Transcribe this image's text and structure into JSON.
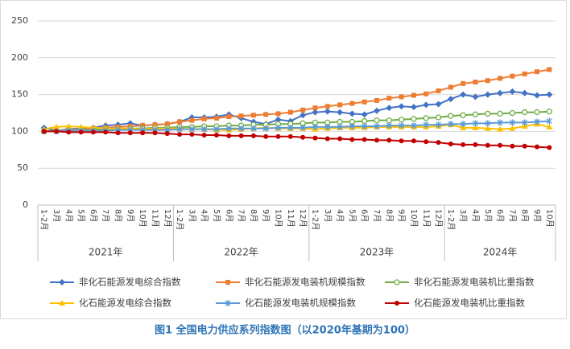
{
  "chart_data": {
    "type": "line",
    "caption": "图1 全国电力供应系列指数图（以2020年基期为100）",
    "categories": [
      "1-2月",
      "3月",
      "4月",
      "5月",
      "6月",
      "7月",
      "8月",
      "9月",
      "10月",
      "11月",
      "12月",
      "1-2月",
      "3月",
      "4月",
      "5月",
      "6月",
      "7月",
      "8月",
      "9月",
      "10月",
      "11月",
      "12月",
      "1-2月",
      "3月",
      "4月",
      "5月",
      "6月",
      "7月",
      "8月",
      "9月",
      "10月",
      "11月",
      "12月",
      "1-2月",
      "3月",
      "4月",
      "5月",
      "6月",
      "7月",
      "8月",
      "9月",
      "10月"
    ],
    "year_labels": [
      "2021年",
      "2022年",
      "2023年",
      "2024年"
    ],
    "ylim": [
      0,
      250
    ],
    "yticks": [
      0,
      50,
      100,
      150,
      200,
      250
    ],
    "grid": true,
    "legend": "bottom",
    "series": [
      {
        "name": "非化石能源发电综合指数",
        "color": "#4472c4",
        "marker": "diamond",
        "values": [
          105,
          101,
          103,
          104,
          105,
          108,
          109,
          111,
          108,
          109,
          110,
          113,
          119,
          119,
          120,
          123,
          118,
          113,
          110,
          116,
          114,
          122,
          126,
          127,
          126,
          124,
          123,
          128,
          132,
          134,
          133,
          136,
          137,
          144,
          150,
          147,
          150,
          152,
          154,
          152,
          149,
          150
        ]
      },
      {
        "name": "非化石能源发电装机规模指数",
        "color": "#ed7d31",
        "marker": "square",
        "values": [
          100,
          101,
          102,
          103,
          104,
          105,
          106,
          107,
          108,
          109,
          110,
          113,
          115,
          117,
          118,
          120,
          121,
          122,
          123,
          124,
          126,
          129,
          132,
          134,
          136,
          138,
          140,
          142,
          145,
          147,
          149,
          151,
          155,
          160,
          165,
          167,
          169,
          172,
          175,
          178,
          181,
          184
        ]
      },
      {
        "name": "非化石能源发电装机比重指数",
        "color": "#70ad47",
        "marker": "circle-open",
        "values": [
          100,
          101,
          101,
          102,
          102,
          103,
          103,
          104,
          104,
          105,
          105,
          106,
          106,
          107,
          107,
          108,
          108,
          109,
          109,
          110,
          110,
          111,
          112,
          112,
          113,
          113,
          114,
          115,
          115,
          116,
          117,
          118,
          119,
          121,
          122,
          123,
          124,
          124,
          125,
          126,
          126,
          127
        ]
      },
      {
        "name": "化石能源发电综合指数",
        "color": "#ffc000",
        "marker": "triangle",
        "values": [
          103,
          106,
          107,
          106,
          105,
          104,
          104,
          104,
          103,
          104,
          104,
          104,
          103,
          103,
          102,
          102,
          103,
          104,
          105,
          104,
          104,
          104,
          103,
          104,
          105,
          105,
          105,
          106,
          106,
          106,
          106,
          106,
          107,
          109,
          105,
          105,
          104,
          103,
          104,
          107,
          110,
          106
        ]
      },
      {
        "name": "化石能源发电装机规模指数",
        "color": "#5b9bd5",
        "marker": "star",
        "values": [
          100,
          100,
          101,
          101,
          101,
          101,
          102,
          102,
          102,
          102,
          102,
          103,
          103,
          103,
          103,
          104,
          104,
          104,
          104,
          105,
          105,
          105,
          106,
          106,
          106,
          107,
          107,
          107,
          108,
          108,
          108,
          109,
          109,
          110,
          110,
          111,
          111,
          112,
          112,
          112,
          113,
          114
        ]
      },
      {
        "name": "化石能源发电装机比重指数",
        "color": "#c00000",
        "marker": "circle",
        "values": [
          100,
          100,
          99,
          99,
          99,
          99,
          98,
          98,
          98,
          98,
          97,
          96,
          96,
          95,
          95,
          94,
          94,
          94,
          93,
          93,
          93,
          92,
          91,
          90,
          90,
          89,
          89,
          88,
          88,
          87,
          87,
          86,
          85,
          83,
          82,
          82,
          81,
          81,
          80,
          80,
          79,
          78
        ]
      }
    ]
  }
}
